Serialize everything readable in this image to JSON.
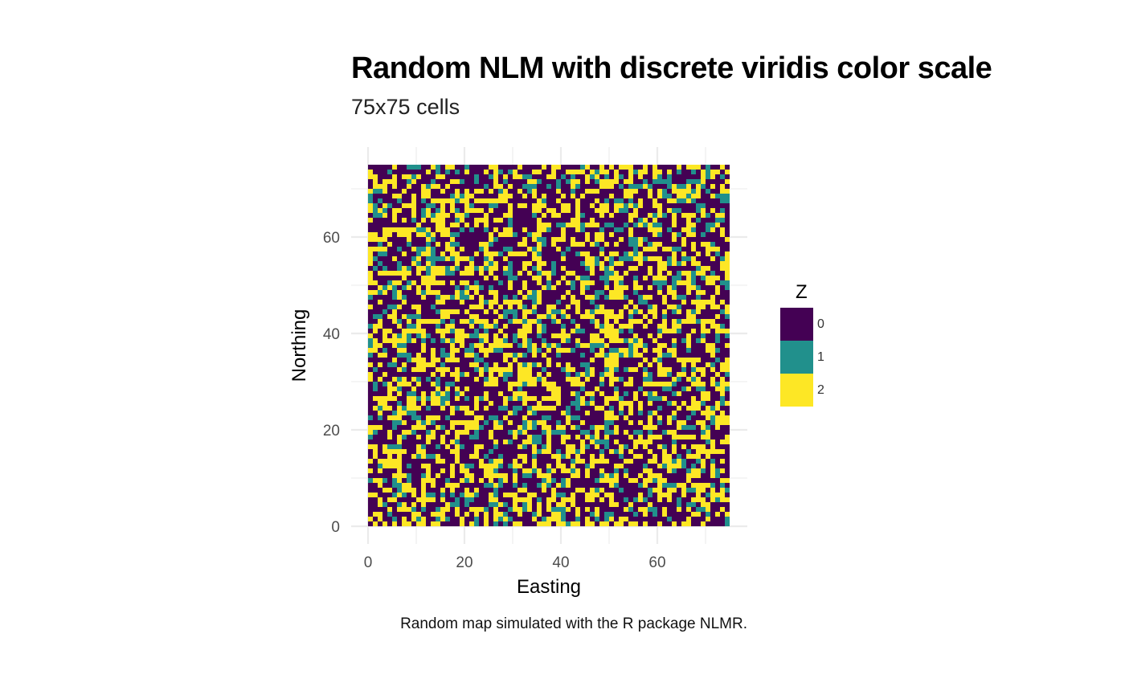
{
  "chart_data": {
    "type": "heatmap",
    "title": "Random NLM with discrete viridis color scale",
    "subtitle": "75x75 cells",
    "caption": "Random map simulated with the R package NLMR.",
    "xlabel": "Easting",
    "ylabel": "Northing",
    "xlim": [
      0,
      75
    ],
    "ylim": [
      0,
      75
    ],
    "xticks": [
      0,
      20,
      40,
      60
    ],
    "yticks": [
      0,
      20,
      40,
      60
    ],
    "grid": true,
    "nrows": 75,
    "ncols": 75,
    "legend": {
      "title": "Z",
      "placement": "right",
      "entries": [
        {
          "label": "0",
          "value": 0,
          "color": "#440154"
        },
        {
          "label": "1",
          "value": 1,
          "color": "#21908C"
        },
        {
          "label": "2",
          "value": 2,
          "color": "#FDE725"
        }
      ]
    },
    "category_proportions": [
      0.5,
      0.15,
      0.35
    ]
  }
}
